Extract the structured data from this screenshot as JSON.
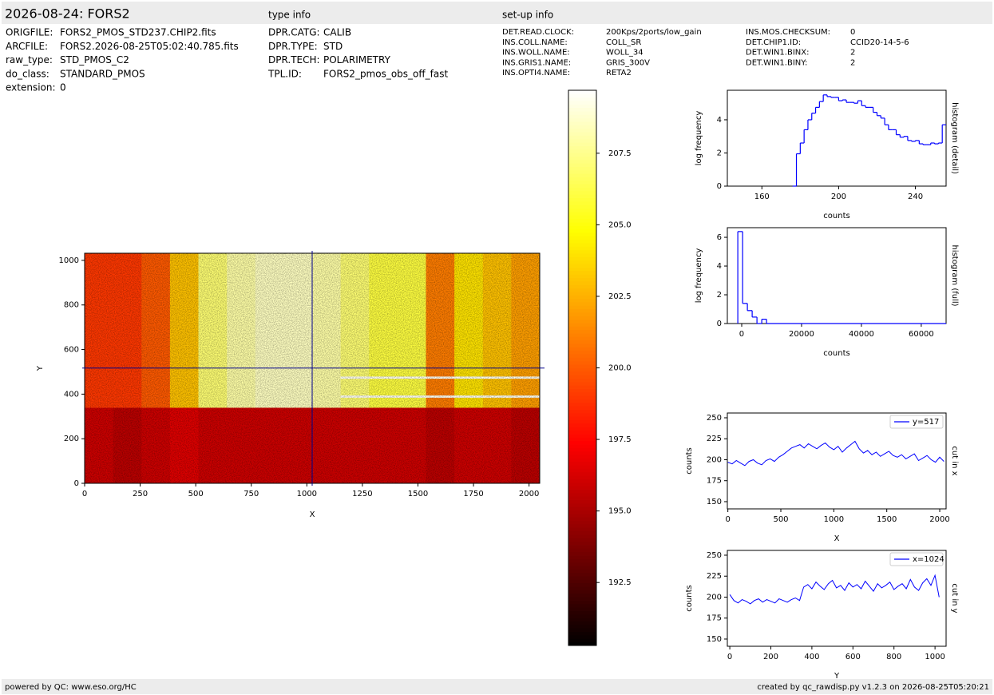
{
  "header": {
    "title": "2026-08-24: FORS2",
    "type_info_title": "type info",
    "setup_info_title": "set-up info"
  },
  "file_info": [
    [
      "ORIGFILE:",
      "FORS2_PMOS_STD237.CHIP2.fits"
    ],
    [
      "ARCFILE:",
      "FORS2.2026-08-25T05:02:40.785.fits"
    ],
    [
      "raw_type:",
      "STD_PMOS_C2"
    ],
    [
      "do_class:",
      "STANDARD_PMOS"
    ],
    [
      "extension:",
      "0"
    ]
  ],
  "type_info": [
    [
      "DPR.CATG:",
      "CALIB"
    ],
    [
      "DPR.TYPE:",
      "STD"
    ],
    [
      "DPR.TECH:",
      "POLARIMETRY"
    ],
    [
      "TPL.ID:",
      "FORS2_pmos_obs_off_fast"
    ]
  ],
  "setup_info": [
    [
      [
        "DET.READ.CLOCK:",
        "200Kps/2ports/low_gain"
      ],
      [
        "INS.COLL.NAME:",
        "COLL_SR"
      ],
      [
        "INS.WOLL.NAME:",
        "WOLL_34"
      ],
      [
        "INS.GRIS1.NAME:",
        "GRIS_300V"
      ],
      [
        "INS.OPTI4.NAME:",
        "RETA2"
      ]
    ],
    [
      [
        "INS.MOS.CHECKSUM:",
        "0"
      ],
      [
        "DET.CHIP1.ID:",
        "CCID20-14-5-6"
      ],
      [
        "DET.WIN1.BINX:",
        "2"
      ],
      [
        "DET.WIN1.BINY:",
        "2"
      ]
    ]
  ],
  "footer": {
    "left": "powered by QC: www.eso.org/HC",
    "right": "created by qc_rawdisp.py v1.2.3 on 2026-08-25T05:20:21"
  },
  "chart_data": [
    {
      "type": "image",
      "xlabel": "X",
      "ylabel": "Y",
      "xlim": [
        0,
        2048
      ],
      "ylim": [
        0,
        1032
      ],
      "xticks": [
        0,
        250,
        500,
        750,
        1000,
        1250,
        1500,
        1750,
        2000
      ],
      "yticks": [
        0,
        200,
        400,
        600,
        800,
        1000
      ],
      "x_edges": [
        0,
        128,
        256,
        384,
        512,
        640,
        768,
        896,
        1024,
        1152,
        1280,
        1408,
        1536,
        1664,
        1792,
        1920,
        2048
      ],
      "y_edges": [
        0,
        340,
        385,
        395,
        470,
        480,
        1032
      ],
      "values": [
        [
          196,
          195.5,
          196,
          196.5,
          196,
          196,
          196,
          196,
          196,
          196,
          196,
          196,
          195.5,
          196,
          196,
          195.5
        ],
        [
          199,
          199,
          200,
          203,
          207,
          208,
          208.5,
          208.5,
          208,
          207,
          206,
          206,
          201,
          204,
          203,
          202
        ],
        [
          199,
          199,
          200,
          203,
          207,
          208,
          208.5,
          208.5,
          208,
          209.5,
          209.5,
          209.5,
          209.5,
          209.5,
          209.5,
          209.5
        ],
        [
          199,
          199,
          200,
          203,
          207,
          208,
          208.5,
          208.5,
          208,
          207,
          206,
          206,
          201,
          204,
          203,
          202
        ],
        [
          199,
          199,
          200,
          203,
          207,
          208,
          208.5,
          208.5,
          208,
          209.5,
          209.5,
          209.5,
          209.5,
          209.5,
          209.5,
          209.5
        ],
        [
          199,
          199,
          200,
          203,
          207,
          208,
          208.5,
          208.5,
          208,
          207,
          206,
          206,
          201,
          204,
          203,
          202
        ]
      ],
      "crosshair": {
        "x": 1024,
        "y": 517
      },
      "colormap": "hot",
      "clim": [
        190.3,
        209.7
      ],
      "colorbar_ticks": [
        192.5,
        {
          "value": 195,
          "label": "195.0"
        },
        197.5,
        {
          "value": 200,
          "label": "200.0"
        },
        202.5,
        {
          "value": 205,
          "label": "205.0"
        },
        207.5
      ]
    },
    {
      "type": "histogram",
      "title": "histogram (detail)",
      "xlabel": "counts",
      "ylabel": "log frequency",
      "color": "#0000ff",
      "xlim": [
        142,
        256
      ],
      "ylim": [
        0,
        5.78
      ],
      "xticks": [
        160,
        200,
        240
      ],
      "yticks": [
        0,
        2,
        4
      ],
      "bins": [
        176,
        178,
        180,
        182,
        184,
        186,
        188,
        190,
        192,
        194,
        196,
        198,
        200,
        202,
        204,
        206,
        208,
        210,
        212,
        214,
        216,
        218,
        220,
        222,
        224,
        226,
        228,
        230,
        232,
        234,
        236,
        238,
        240,
        242,
        244,
        246,
        248,
        250,
        252,
        254,
        256
      ],
      "values": [
        0,
        1.95,
        2.6,
        3.4,
        4.0,
        4.4,
        4.75,
        5.1,
        5.5,
        5.4,
        5.35,
        5.35,
        5.15,
        5.2,
        5.05,
        5.05,
        5.0,
        5.15,
        4.85,
        4.75,
        4.75,
        4.45,
        4.25,
        4.1,
        3.7,
        3.4,
        3.4,
        3.1,
        2.95,
        3.0,
        2.75,
        2.7,
        2.75,
        2.55,
        2.5,
        2.5,
        2.6,
        2.55,
        2.6,
        3.7
      ]
    },
    {
      "type": "histogram",
      "title": "histogram (full)",
      "xlabel": "counts",
      "ylabel": "log frequency",
      "color": "#0000ff",
      "xlim": [
        -4800,
        68300
      ],
      "ylim": [
        0,
        6.67
      ],
      "xticks": [
        0,
        20000,
        40000,
        60000
      ],
      "yticks": [
        0,
        2,
        4,
        6
      ],
      "bins": [
        -1300,
        300,
        1900,
        3500,
        5100,
        6700,
        8300,
        68300
      ],
      "values": [
        6.4,
        1.4,
        0.9,
        0.45,
        0,
        0.3,
        0
      ]
    },
    {
      "type": "line",
      "title": "cut in x",
      "xlabel": "X",
      "ylabel": "counts",
      "xlim": [
        -5,
        2060
      ],
      "ylim": [
        141.4,
        255.7
      ],
      "xticks": [
        0,
        500,
        1000,
        1500,
        2000
      ],
      "yticks": [
        150,
        175,
        200,
        225,
        250
      ],
      "x": [
        0,
        40,
        80,
        120,
        160,
        200,
        240,
        280,
        320,
        360,
        400,
        440,
        480,
        520,
        560,
        600,
        640,
        680,
        720,
        760,
        800,
        840,
        880,
        920,
        960,
        1000,
        1040,
        1080,
        1120,
        1160,
        1200,
        1240,
        1280,
        1320,
        1360,
        1400,
        1440,
        1480,
        1520,
        1560,
        1600,
        1640,
        1680,
        1720,
        1760,
        1800,
        1840,
        1880,
        1920,
        1960,
        2000,
        2040
      ],
      "series": [
        {
          "name": "y=517",
          "color": "#0000ff",
          "values": [
            197,
            195,
            199,
            196,
            193,
            198,
            200,
            196,
            194,
            199,
            201,
            198,
            203,
            206,
            210,
            214,
            216,
            218,
            214,
            219,
            216,
            213,
            217,
            220,
            215,
            212,
            216,
            209,
            214,
            218,
            222,
            213,
            208,
            211,
            206,
            209,
            204,
            207,
            210,
            205,
            203,
            206,
            201,
            204,
            207,
            199,
            202,
            205,
            200,
            197,
            203,
            198
          ]
        }
      ],
      "legend": "upper right"
    },
    {
      "type": "line",
      "title": "cut in y",
      "xlabel": "Y",
      "ylabel": "counts",
      "xlim": [
        -12,
        1054
      ],
      "ylim": [
        141.4,
        255.7
      ],
      "xticks": [
        0,
        200,
        400,
        600,
        800,
        1000
      ],
      "yticks": [
        150,
        175,
        200,
        225,
        250
      ],
      "x": [
        0,
        20,
        40,
        60,
        80,
        100,
        120,
        140,
        160,
        180,
        200,
        220,
        240,
        260,
        280,
        300,
        320,
        340,
        360,
        380,
        400,
        420,
        440,
        460,
        480,
        500,
        520,
        540,
        560,
        580,
        600,
        620,
        640,
        660,
        680,
        700,
        720,
        740,
        760,
        780,
        800,
        820,
        840,
        860,
        880,
        900,
        920,
        940,
        960,
        980,
        1000,
        1020
      ],
      "series": [
        {
          "name": "x=1024",
          "color": "#0000ff",
          "values": [
            203,
            196,
            193,
            197,
            195,
            192,
            196,
            198,
            194,
            197,
            195,
            193,
            198,
            196,
            194,
            197,
            199,
            196,
            212,
            215,
            210,
            218,
            213,
            209,
            216,
            220,
            211,
            214,
            208,
            217,
            212,
            215,
            210,
            219,
            213,
            207,
            216,
            211,
            214,
            218,
            209,
            213,
            216,
            210,
            221,
            212,
            208,
            217,
            222,
            214,
            226,
            200
          ]
        }
      ],
      "legend": "upper right"
    }
  ]
}
